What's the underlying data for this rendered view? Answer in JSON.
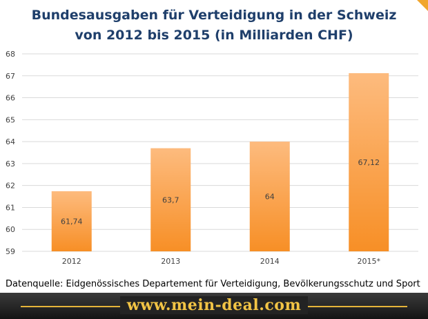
{
  "chart_data": {
    "type": "bar",
    "title_lines": [
      "Bundesausgaben  für Verteidigung  in der Schweiz",
      "von 2012 bis 2015 (in Milliarden  CHF)"
    ],
    "categories": [
      "2012",
      "2013",
      "2014",
      "2015*"
    ],
    "values": [
      61.74,
      63.7,
      64,
      67.12
    ],
    "value_labels": [
      "61,74",
      "63,7",
      "64",
      "67,12"
    ],
    "ylim": [
      59,
      68
    ],
    "yticks": [
      "59",
      "60",
      "61",
      "62",
      "63",
      "64",
      "65",
      "66",
      "67",
      "68"
    ],
    "grid": true,
    "bar_color_top": "#fdbb7e",
    "bar_color_bottom": "#f78f26"
  },
  "source": "Datenquelle: Eidgenössisches Departement für Verteidigung, Bevölkerungsschutz und Sport",
  "footer": {
    "site": "www.mein-deal.com",
    "accent": "#f2c445"
  }
}
